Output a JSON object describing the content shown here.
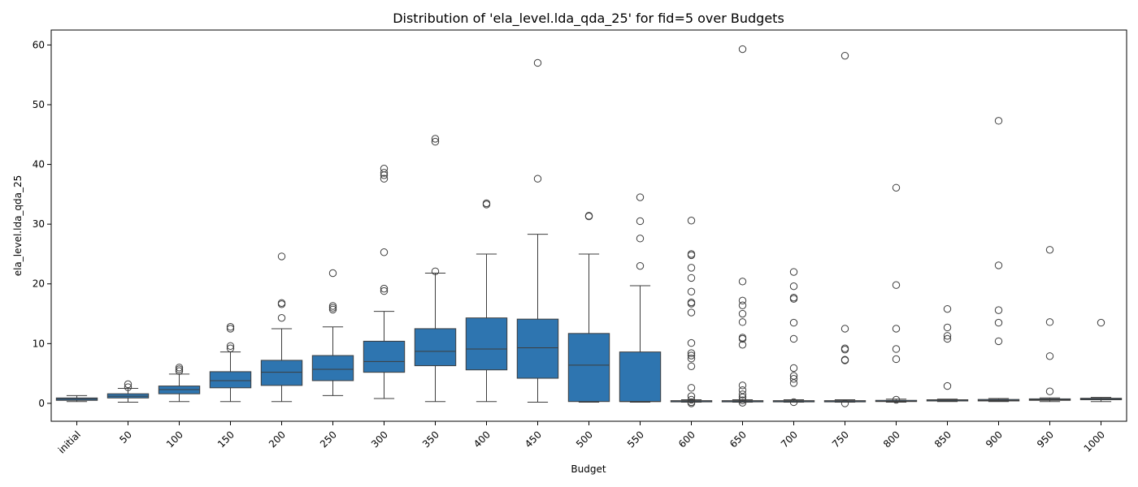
{
  "chart_data": {
    "type": "box",
    "title": "Distribution of 'ela_level.lda_qda_25' for fid=5 over Budgets",
    "xlabel": "Budget",
    "ylabel": "ela_level.lda_qda_25",
    "ylim": [
      -3.0,
      62.5
    ],
    "yticks": [
      0,
      10,
      20,
      30,
      40,
      50,
      60
    ],
    "grid": false,
    "box_color": "#2e75b0",
    "categories": [
      "initial",
      "50",
      "100",
      "150",
      "200",
      "250",
      "300",
      "350",
      "400",
      "450",
      "500",
      "550",
      "600",
      "650",
      "700",
      "750",
      "800",
      "850",
      "900",
      "950",
      "1000"
    ],
    "boxes": [
      {
        "whislo": 0.3,
        "q1": 0.5,
        "med": 0.7,
        "q3": 0.9,
        "whishi": 1.3,
        "fliers": []
      },
      {
        "whislo": 0.2,
        "q1": 0.9,
        "med": 1.2,
        "q3": 1.6,
        "whishi": 2.5,
        "fliers": [
          2.7,
          3.2
        ]
      },
      {
        "whislo": 0.3,
        "q1": 1.6,
        "med": 2.3,
        "q3": 2.9,
        "whishi": 4.9,
        "fliers": [
          5.4,
          5.7,
          6.0
        ]
      },
      {
        "whislo": 0.3,
        "q1": 2.6,
        "med": 3.8,
        "q3": 5.3,
        "whishi": 8.6,
        "fliers": [
          9.2,
          9.6,
          12.5,
          12.8
        ]
      },
      {
        "whislo": 0.3,
        "q1": 3.0,
        "med": 5.2,
        "q3": 7.2,
        "whishi": 12.5,
        "fliers": [
          14.3,
          16.6,
          16.8,
          24.6
        ]
      },
      {
        "whislo": 1.3,
        "q1": 3.8,
        "med": 5.7,
        "q3": 8.0,
        "whishi": 12.8,
        "fliers": [
          15.7,
          16.0,
          16.3,
          21.8
        ]
      },
      {
        "whislo": 0.8,
        "q1": 5.2,
        "med": 7.0,
        "q3": 10.4,
        "whishi": 15.4,
        "fliers": [
          18.8,
          19.2,
          25.3,
          37.6,
          38.2,
          38.6,
          39.3
        ]
      },
      {
        "whislo": 0.3,
        "q1": 6.3,
        "med": 8.7,
        "q3": 12.5,
        "whishi": 21.8,
        "fliers": [
          22.1,
          43.8,
          44.3
        ]
      },
      {
        "whislo": 0.3,
        "q1": 5.6,
        "med": 9.1,
        "q3": 14.3,
        "whishi": 25.0,
        "fliers": [
          33.3,
          33.5
        ]
      },
      {
        "whislo": 0.2,
        "q1": 4.2,
        "med": 9.3,
        "q3": 14.1,
        "whishi": 28.3,
        "fliers": [
          37.6,
          57.0
        ]
      },
      {
        "whislo": 0.2,
        "q1": 0.3,
        "med": 6.4,
        "q3": 11.7,
        "whishi": 25.0,
        "fliers": [
          31.3,
          31.4
        ]
      },
      {
        "whislo": 0.2,
        "q1": 0.3,
        "med": 0.3,
        "q3": 8.6,
        "whishi": 19.7,
        "fliers": [
          23.0,
          27.6,
          30.5,
          34.5
        ]
      },
      {
        "whislo": 0.2,
        "q1": 0.25,
        "med": 0.3,
        "q3": 0.45,
        "whishi": 0.6,
        "fliers": [
          0.0,
          0.2,
          0.6,
          1.2,
          2.6,
          6.2,
          7.5,
          8.0,
          8.4,
          10.1,
          15.2,
          16.7,
          16.9,
          18.7,
          21.0,
          22.7,
          24.8,
          25.0,
          30.6
        ]
      },
      {
        "whislo": 0.2,
        "q1": 0.25,
        "med": 0.3,
        "q3": 0.45,
        "whishi": 0.6,
        "fliers": [
          0.1,
          0.5,
          1.0,
          1.5,
          2.2,
          3.0,
          9.8,
          10.8,
          11.0,
          13.6,
          15.0,
          16.4,
          17.2,
          20.4,
          59.3
        ]
      },
      {
        "whislo": 0.2,
        "q1": 0.25,
        "med": 0.3,
        "q3": 0.45,
        "whishi": 0.6,
        "fliers": [
          0.2,
          3.4,
          4.1,
          4.6,
          5.9,
          10.8,
          13.5,
          17.5,
          17.7,
          19.6,
          22.0
        ]
      },
      {
        "whislo": 0.2,
        "q1": 0.25,
        "med": 0.3,
        "q3": 0.45,
        "whishi": 0.6,
        "fliers": [
          0.0,
          7.2,
          7.3,
          9.0,
          9.2,
          12.5,
          58.2
        ]
      },
      {
        "whislo": 0.2,
        "q1": 0.3,
        "med": 0.35,
        "q3": 0.5,
        "whishi": 0.7,
        "fliers": [
          0.6,
          7.4,
          9.1,
          12.5,
          19.8,
          36.1
        ]
      },
      {
        "whislo": 0.3,
        "q1": 0.4,
        "med": 0.45,
        "q3": 0.6,
        "whishi": 0.7,
        "fliers": [
          2.9,
          10.8,
          11.3,
          12.7,
          15.8
        ]
      },
      {
        "whislo": 0.3,
        "q1": 0.4,
        "med": 0.5,
        "q3": 0.65,
        "whishi": 0.8,
        "fliers": [
          10.4,
          13.5,
          15.6,
          23.1,
          47.3
        ]
      },
      {
        "whislo": 0.3,
        "q1": 0.5,
        "med": 0.6,
        "q3": 0.75,
        "whishi": 0.9,
        "fliers": [
          2.0,
          7.9,
          13.6,
          25.7
        ]
      },
      {
        "whislo": 0.3,
        "q1": 0.6,
        "med": 0.7,
        "q3": 0.85,
        "whishi": 1.0,
        "fliers": [
          13.5
        ]
      }
    ]
  }
}
